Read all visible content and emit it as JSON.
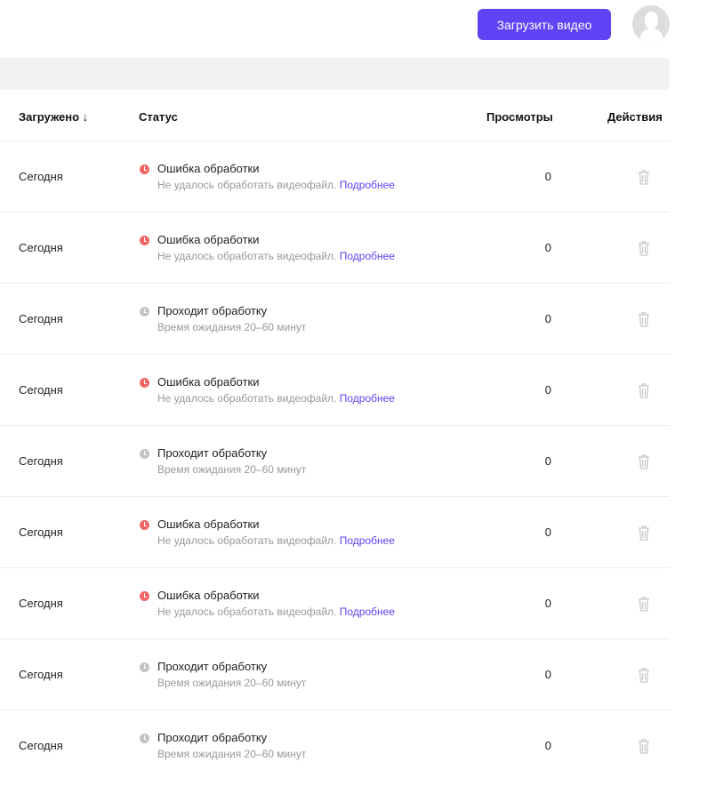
{
  "header": {
    "upload_label": "Загрузить видео"
  },
  "table": {
    "columns": {
      "uploaded": "Загружено ↓",
      "status": "Статус",
      "views": "Просмотры",
      "actions": "Действия"
    },
    "statuses": {
      "error": {
        "title": "Ошибка обработки",
        "sub": "Не удалось обработать видеофайл.",
        "link": "Подробнее",
        "color": "#f06565"
      },
      "processing": {
        "title": "Проходит обработку",
        "sub": "Время ожидания 20–60 минут",
        "link": "",
        "color": "#c4c4c4"
      }
    },
    "rows": [
      {
        "date": "Сегодня",
        "status": "error",
        "views": "0"
      },
      {
        "date": "Сегодня",
        "status": "error",
        "views": "0"
      },
      {
        "date": "Сегодня",
        "status": "processing",
        "views": "0"
      },
      {
        "date": "Сегодня",
        "status": "error",
        "views": "0"
      },
      {
        "date": "Сегодня",
        "status": "processing",
        "views": "0"
      },
      {
        "date": "Сегодня",
        "status": "error",
        "views": "0"
      },
      {
        "date": "Сегодня",
        "status": "error",
        "views": "0"
      },
      {
        "date": "Сегодня",
        "status": "processing",
        "views": "0"
      },
      {
        "date": "Сегодня",
        "status": "processing",
        "views": "0"
      }
    ]
  }
}
